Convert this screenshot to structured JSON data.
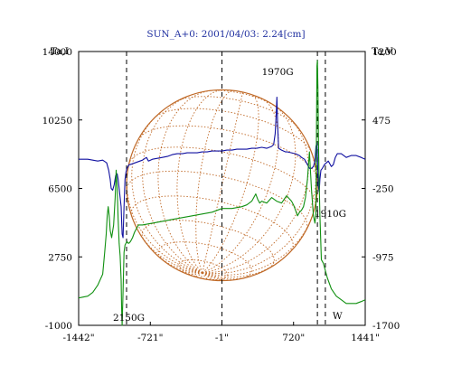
{
  "chart_data": {
    "type": "line",
    "title": "SUN_A+0: 2001/04/03: 2.24[cm]",
    "x_axis": {
      "range": [
        -1442,
        1441
      ],
      "ticks": [
        -1442,
        -721,
        -1,
        720,
        1441
      ],
      "tick_labels": [
        "-1442\"",
        "-721\"",
        "-1\"",
        "720\"",
        "1441\""
      ]
    },
    "y_left": {
      "label": "Ta,I",
      "range": [
        -1000,
        14000
      ],
      "ticks": [
        -1000,
        2750,
        6500,
        10250,
        14000
      ],
      "tick_labels": [
        "-1000",
        "2750",
        "6500",
        "10250",
        "14000"
      ]
    },
    "y_right": {
      "label": "Ta,V",
      "range": [
        -1700,
        1200
      ],
      "ticks": [
        -1700,
        -975,
        -250,
        475,
        1200
      ],
      "tick_labels": [
        "-1700",
        "-975",
        "-250",
        "475",
        "1200"
      ]
    },
    "grid": false,
    "disk": {
      "color": "#c06a28",
      "center_x": 0,
      "radius": 960,
      "tilt": "north pole tilted"
    },
    "vertical_markers": [
      -960,
      0,
      960,
      1040
    ],
    "series": [
      {
        "axis": "left",
        "color": "#1010a0",
        "x": [
          -1442,
          -1350,
          -1250,
          -1200,
          -1160,
          -1140,
          -1125,
          -1115,
          -1100,
          -1085,
          -1070,
          -1055,
          -1045,
          -1035,
          -1025,
          -1015,
          -1010,
          -1005,
          -995,
          -985,
          -975,
          -965,
          -955,
          -945,
          -935,
          -925,
          -900,
          -850,
          -800,
          -760,
          -740,
          -700,
          -650,
          -600,
          -550,
          -500,
          -450,
          -400,
          -350,
          -300,
          -250,
          -200,
          -150,
          -100,
          -50,
          0,
          50,
          100,
          150,
          200,
          250,
          300,
          350,
          400,
          450,
          500,
          520,
          535,
          545,
          552,
          560,
          570,
          600,
          620,
          640,
          660,
          700,
          740,
          780,
          800,
          830,
          860,
          880,
          900,
          920,
          935,
          945,
          955,
          960,
          970,
          978,
          985,
          995,
          1010,
          1030,
          1050,
          1070,
          1100,
          1120,
          1140,
          1160,
          1200,
          1250,
          1300,
          1350,
          1400,
          1441
        ],
        "y": [
          8100,
          8100,
          8000,
          8050,
          7900,
          7500,
          7000,
          6500,
          6400,
          6700,
          7200,
          7300,
          7000,
          6500,
          6000,
          5500,
          4800,
          4000,
          3800,
          5500,
          7000,
          7400,
          7600,
          7700,
          7800,
          7800,
          7850,
          7950,
          8050,
          8200,
          8000,
          8100,
          8150,
          8200,
          8250,
          8350,
          8400,
          8400,
          8450,
          8450,
          8450,
          8500,
          8500,
          8550,
          8550,
          8550,
          8600,
          8600,
          8650,
          8650,
          8650,
          8700,
          8700,
          8750,
          8700,
          8800,
          8900,
          9500,
          10500,
          11500,
          10000,
          8700,
          8600,
          8550,
          8500,
          8500,
          8450,
          8400,
          8300,
          8200,
          8100,
          7800,
          7600,
          7600,
          7700,
          8000,
          8800,
          9000,
          8200,
          6600,
          6300,
          7000,
          7500,
          7600,
          7800,
          7900,
          8000,
          7700,
          7800,
          8200,
          8400,
          8400,
          8200,
          8300,
          8300,
          8200,
          8100
        ],
        "annotations": [
          {
            "text": "1970G",
            "x": 560
          },
          {
            "text": "1910G",
            "x": 1000
          },
          {
            "text": "2150G",
            "x": -1010
          }
        ]
      },
      {
        "axis": "left",
        "color": "#109010",
        "x": [
          -1442,
          -1350,
          -1300,
          -1250,
          -1200,
          -1180,
          -1165,
          -1155,
          -1145,
          -1135,
          -1125,
          -1110,
          -1090,
          -1075,
          -1065,
          -1055,
          -1045,
          -1035,
          -1025,
          -1015,
          -1010,
          -1005,
          -995,
          -985,
          -975,
          -965,
          -955,
          -945,
          -935,
          -920,
          -900,
          -880,
          -860,
          -840,
          -800,
          -700,
          -600,
          -500,
          -400,
          -300,
          -200,
          -100,
          0,
          100,
          200,
          250,
          300,
          320,
          340,
          360,
          380,
          400,
          450,
          500,
          550,
          600,
          650,
          700,
          720,
          740,
          760,
          780,
          800,
          820,
          840,
          860,
          880,
          900,
          920,
          935,
          945,
          950,
          955,
          960,
          965,
          970,
          975,
          985,
          1000,
          1020,
          1040,
          1060,
          1080,
          1100,
          1150,
          1200,
          1250,
          1300,
          1350,
          1400,
          1441
        ],
        "y": [
          500,
          600,
          800,
          1200,
          1800,
          3000,
          4000,
          5000,
          5500,
          5000,
          4200,
          3800,
          4500,
          6000,
          7500,
          6500,
          4800,
          3500,
          2800,
          1500,
          0,
          -1000,
          800,
          3000,
          3400,
          3500,
          3600,
          3500,
          3500,
          3600,
          3800,
          4100,
          4300,
          4500,
          4500,
          4600,
          4700,
          4800,
          4900,
          5000,
          5100,
          5200,
          5400,
          5400,
          5500,
          5600,
          5800,
          6000,
          6200,
          5900,
          5700,
          5800,
          5700,
          6000,
          5800,
          5700,
          6100,
          5800,
          5600,
          5300,
          5000,
          5200,
          5300,
          5500,
          6000,
          7000,
          8500,
          6500,
          5000,
          4600,
          5200,
          9000,
          13200,
          13500,
          12000,
          9500,
          7500,
          5000,
          2600,
          2400,
          2000,
          1600,
          1300,
          1000,
          600,
          400,
          200,
          200,
          200,
          300,
          400
        ]
      }
    ],
    "labels": {
      "w_marker": "W"
    }
  }
}
